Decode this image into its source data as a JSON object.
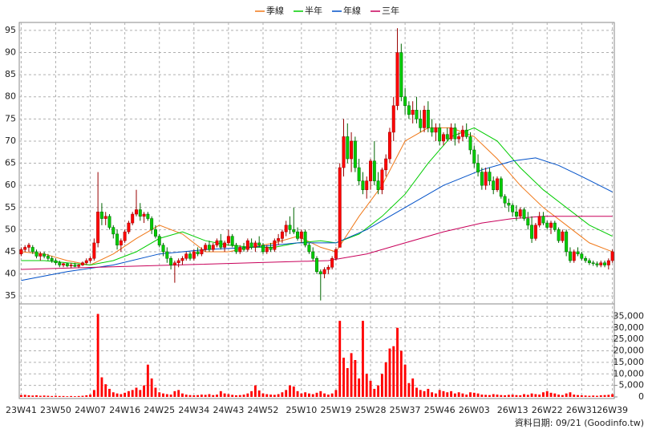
{
  "chart_data": {
    "type": "candlestick",
    "categories": [
      "23W41",
      null,
      null,
      null,
      null,
      null,
      null,
      null,
      null,
      "23W50",
      null,
      null,
      null,
      null,
      null,
      null,
      null,
      null,
      "24W07",
      null,
      null,
      null,
      null,
      null,
      null,
      null,
      null,
      "24W16",
      null,
      null,
      null,
      null,
      null,
      null,
      null,
      null,
      "24W25",
      null,
      null,
      null,
      null,
      null,
      null,
      null,
      null,
      "24W34",
      null,
      null,
      null,
      null,
      null,
      null,
      null,
      null,
      "24W43",
      null,
      null,
      null,
      null,
      null,
      null,
      null,
      null,
      "24W52",
      null,
      null,
      null,
      null,
      null,
      null,
      null,
      null,
      null,
      "25W10",
      null,
      null,
      null,
      null,
      null,
      null,
      null,
      null,
      "25W19",
      null,
      null,
      null,
      null,
      null,
      null,
      null,
      null,
      "25W28",
      null,
      null,
      null,
      null,
      null,
      null,
      null,
      null,
      "25W37",
      null,
      null,
      null,
      null,
      null,
      null,
      null,
      null,
      "25W46",
      null,
      null,
      null,
      null,
      null,
      null,
      null,
      null,
      "26W03",
      null,
      null,
      null,
      null,
      null,
      null,
      null,
      null,
      null,
      "26W13",
      null,
      null,
      null,
      null,
      null,
      null,
      null,
      null,
      "26W22",
      null,
      null,
      null,
      null,
      null,
      null,
      null,
      null,
      "26W31",
      null,
      null,
      null,
      null,
      null,
      null,
      null,
      "26W39"
    ],
    "candles": [
      [
        44.5,
        46,
        44,
        45.5
      ],
      [
        45.5,
        46.5,
        45,
        46
      ],
      [
        46,
        47,
        45,
        46.5
      ],
      [
        46,
        46.5,
        44.5,
        45
      ],
      [
        45,
        45.5,
        43.5,
        44
      ],
      [
        44,
        45,
        43,
        44.5
      ],
      [
        44.5,
        45,
        43.5,
        44
      ],
      [
        44,
        44.5,
        43,
        43.5
      ],
      [
        43.5,
        44,
        42.5,
        43
      ],
      [
        43,
        43.5,
        42,
        42.5
      ],
      [
        42.5,
        43,
        41.5,
        42
      ],
      [
        42,
        42.5,
        41.5,
        42.3
      ],
      [
        42.3,
        42.5,
        41.5,
        41.8
      ],
      [
        41.8,
        42.5,
        41.3,
        42
      ],
      [
        42,
        42.5,
        41.5,
        41.7
      ],
      [
        41.7,
        42.2,
        41.3,
        42
      ],
      [
        42,
        42.8,
        41.8,
        42.5
      ],
      [
        42.5,
        43.5,
        42,
        43
      ],
      [
        43,
        44,
        42.5,
        43.5
      ],
      [
        43.5,
        48,
        43,
        47
      ],
      [
        47,
        63,
        46,
        54
      ],
      [
        54,
        56,
        51,
        52.5
      ],
      [
        52.5,
        54,
        51,
        53
      ],
      [
        53,
        53.5,
        50,
        50.5
      ],
      [
        50.5,
        51,
        48,
        49
      ],
      [
        49,
        50,
        45.5,
        46.5
      ],
      [
        46.5,
        48,
        45,
        47.5
      ],
      [
        47.5,
        50,
        47,
        49.5
      ],
      [
        49.5,
        52,
        49,
        51.5
      ],
      [
        51.5,
        54,
        51,
        53.5
      ],
      [
        53.5,
        59,
        53,
        54.5
      ],
      [
        54.5,
        56,
        52,
        53
      ],
      [
        53,
        54,
        51.5,
        53.5
      ],
      [
        53.5,
        54,
        52,
        52.5
      ],
      [
        52.5,
        53,
        49,
        50
      ],
      [
        50,
        51,
        48,
        48.5
      ],
      [
        48.5,
        49,
        46,
        46.5
      ],
      [
        46.5,
        47,
        44,
        45
      ],
      [
        45,
        46,
        42.5,
        43.5
      ],
      [
        43.5,
        44,
        41,
        42
      ],
      [
        42,
        43,
        38,
        42.5
      ],
      [
        42.5,
        43.5,
        41.5,
        43
      ],
      [
        43,
        44,
        42,
        43.5
      ],
      [
        43.5,
        45,
        43,
        44.5
      ],
      [
        44.5,
        45,
        43,
        43.5
      ],
      [
        43.5,
        45.5,
        43,
        45
      ],
      [
        45,
        46,
        44,
        44.5
      ],
      [
        44.5,
        46,
        44,
        45.5
      ],
      [
        45.5,
        47,
        45,
        46.5
      ],
      [
        46.5,
        47.5,
        45,
        45.5
      ],
      [
        45.5,
        47,
        45,
        46.5
      ],
      [
        46.5,
        48,
        46,
        47.5
      ],
      [
        47.5,
        49,
        45.5,
        46
      ],
      [
        46,
        47.5,
        45,
        47
      ],
      [
        47,
        50,
        46.5,
        48.5
      ],
      [
        48.5,
        49,
        46,
        46.5
      ],
      [
        46.5,
        47,
        44.5,
        45
      ],
      [
        45,
        46.5,
        44.5,
        46
      ],
      [
        46,
        47,
        45,
        45.5
      ],
      [
        45.5,
        48,
        45,
        47.5
      ],
      [
        47,
        48,
        45.5,
        46
      ],
      [
        46,
        47.5,
        45,
        47
      ],
      [
        47,
        48.5,
        46,
        46.5
      ],
      [
        46.5,
        47,
        44.5,
        45
      ],
      [
        45,
        46.5,
        44.5,
        46
      ],
      [
        46,
        47,
        45,
        45.5
      ],
      [
        45.5,
        48,
        45,
        47.5
      ],
      [
        47.5,
        49,
        46.5,
        48
      ],
      [
        48,
        50,
        47,
        49.5
      ],
      [
        49.5,
        52,
        48.5,
        51
      ],
      [
        51,
        53,
        49,
        50
      ],
      [
        50,
        55,
        49,
        49.5
      ],
      [
        49.5,
        50.5,
        47.5,
        48
      ],
      [
        48,
        50,
        47,
        49.5
      ],
      [
        49.5,
        50,
        46,
        46.5
      ],
      [
        46.5,
        47,
        44.5,
        45
      ],
      [
        45,
        46,
        43,
        43.5
      ],
      [
        43.5,
        44,
        40,
        40.5
      ],
      [
        40.5,
        41,
        34,
        40
      ],
      [
        40,
        41.5,
        39,
        41
      ],
      [
        41,
        42,
        40,
        41.5
      ],
      [
        41.5,
        44,
        41,
        43.5
      ],
      [
        43.5,
        46,
        43,
        45.5
      ],
      [
        46,
        65,
        46,
        64
      ],
      [
        64,
        75,
        62,
        71
      ],
      [
        71,
        74,
        65,
        66
      ],
      [
        66,
        72,
        63,
        70
      ],
      [
        70,
        71,
        63,
        64
      ],
      [
        64,
        66,
        60,
        61
      ],
      [
        61,
        63,
        58,
        59
      ],
      [
        59,
        62,
        57,
        61
      ],
      [
        61,
        66,
        59,
        65.5
      ],
      [
        65.5,
        70,
        60,
        61
      ],
      [
        61,
        63,
        58,
        59
      ],
      [
        59,
        64,
        58,
        63.5
      ],
      [
        63.5,
        67,
        62,
        66
      ],
      [
        66,
        73,
        65,
        72
      ],
      [
        72,
        80,
        70,
        78
      ],
      [
        78,
        95.5,
        77,
        90
      ],
      [
        90,
        92,
        79,
        80
      ],
      [
        80,
        82,
        76,
        78
      ],
      [
        78,
        79,
        75,
        76
      ],
      [
        76,
        79,
        74,
        77
      ],
      [
        77,
        80,
        74,
        75
      ],
      [
        75,
        77,
        72,
        73
      ],
      [
        73,
        78,
        72,
        77
      ],
      [
        77,
        79,
        72,
        73
      ],
      [
        73,
        75,
        71,
        72
      ],
      [
        72,
        74,
        70,
        73
      ],
      [
        73,
        74,
        69,
        70
      ],
      [
        70,
        72,
        69,
        71.5
      ],
      [
        71.5,
        73,
        70,
        70.5
      ],
      [
        70.5,
        74,
        70,
        73
      ],
      [
        73,
        74,
        69,
        70.5
      ],
      [
        70.5,
        72,
        69.5,
        71
      ],
      [
        71,
        73.5,
        70,
        72.5
      ],
      [
        72.5,
        74,
        70.5,
        71
      ],
      [
        71,
        72,
        67,
        68
      ],
      [
        68,
        69,
        64,
        65
      ],
      [
        65,
        67,
        62,
        63
      ],
      [
        63,
        64,
        59,
        60
      ],
      [
        60,
        64,
        59,
        63
      ],
      [
        63,
        64,
        60,
        61
      ],
      [
        61,
        62,
        58,
        59
      ],
      [
        59,
        62,
        58.5,
        61.5
      ],
      [
        61.5,
        62,
        57,
        57.5
      ],
      [
        57.5,
        58,
        55,
        56
      ],
      [
        56,
        57,
        54,
        55.5
      ],
      [
        55.5,
        56,
        53,
        54
      ],
      [
        54,
        55.5,
        52,
        53
      ],
      [
        53,
        55,
        52.5,
        54.5
      ],
      [
        54.5,
        55,
        52,
        52.5
      ],
      [
        52.5,
        54,
        50,
        51
      ],
      [
        51,
        53,
        47,
        48
      ],
      [
        48,
        51.5,
        47.5,
        51
      ],
      [
        51,
        54,
        50.5,
        53
      ],
      [
        53,
        54,
        51,
        51.5
      ],
      [
        51.5,
        52,
        50,
        50.5
      ],
      [
        50.5,
        52,
        49,
        51.5
      ],
      [
        51.5,
        52,
        49.5,
        50
      ],
      [
        50,
        50.5,
        47,
        47.5
      ],
      [
        47.5,
        50,
        47,
        49.5
      ],
      [
        49.5,
        50,
        44,
        45
      ],
      [
        45,
        46,
        42.5,
        43
      ],
      [
        43,
        45.5,
        42.5,
        45
      ],
      [
        45,
        46,
        44,
        44.5
      ],
      [
        44.5,
        45,
        43,
        43.5
      ],
      [
        43.5,
        44,
        42.5,
        43
      ],
      [
        43,
        43.5,
        42,
        42.5
      ],
      [
        42.5,
        43,
        41.8,
        42.3
      ],
      [
        42.3,
        42.8,
        41.5,
        42
      ],
      [
        42,
        43,
        41.5,
        42.5
      ],
      [
        42.5,
        43,
        41.5,
        42
      ],
      [
        42,
        43.5,
        41,
        43
      ],
      [
        43,
        45.5,
        42.5,
        45
      ]
    ],
    "up_color": "#ff0000",
    "down_color": "#00cc00",
    "ylim": [
      33.4,
      96.8
    ],
    "yticks": [
      35,
      40,
      45,
      50,
      55,
      60,
      65,
      70,
      75,
      80,
      85,
      90,
      95
    ],
    "grid": true,
    "legend": "top",
    "series": [
      {
        "name": "季線",
        "color": "#f07818",
        "x": [
          0,
          6,
          12,
          18,
          24,
          30,
          36,
          42,
          48,
          54,
          60,
          66,
          72,
          78,
          82,
          88,
          94,
          100,
          106,
          112,
          118,
          124,
          130,
          136,
          142,
          148,
          154
        ],
        "values": [
          45,
          44.5,
          43,
          42,
          44.5,
          48,
          51,
          49,
          45,
          45,
          46,
          47,
          48.5,
          46,
          45,
          53,
          60,
          70,
          73,
          73,
          71,
          66,
          60,
          55,
          51,
          47,
          45
        ]
      },
      {
        "name": "半年",
        "color": "#00cc00",
        "x": [
          0,
          6,
          12,
          18,
          24,
          30,
          36,
          42,
          48,
          54,
          60,
          66,
          72,
          78,
          82,
          88,
          94,
          100,
          106,
          112,
          118,
          124,
          130,
          136,
          142,
          148,
          154
        ],
        "values": [
          43,
          43,
          42.5,
          42,
          43,
          45,
          48,
          49.5,
          47.5,
          46.5,
          46,
          46,
          47,
          47.5,
          47,
          49,
          53,
          58,
          65,
          71,
          73,
          70,
          64,
          59,
          55,
          51,
          48.5
        ]
      },
      {
        "name": "年線",
        "color": "#0050c8",
        "x": [
          0,
          12,
          24,
          36,
          48,
          60,
          72,
          82,
          90,
          100,
          110,
          120,
          128,
          134,
          140,
          146,
          154
        ],
        "values": [
          38.5,
          40.5,
          42,
          44.5,
          45.5,
          46,
          47,
          47,
          50,
          55,
          60,
          63.5,
          65.5,
          66.2,
          64.5,
          62,
          58.5
        ]
      },
      {
        "name": "三年",
        "color": "#c8005a",
        "x": [
          0,
          20,
          40,
          60,
          80,
          90,
          100,
          110,
          120,
          128,
          136,
          154
        ],
        "values": [
          41,
          41.5,
          42,
          42.5,
          43,
          44.5,
          47,
          49.5,
          51.5,
          52.5,
          53,
          53
        ]
      }
    ],
    "volume": {
      "color": "#ff0000",
      "ylim": [
        0,
        40000
      ],
      "yticks": [
        0,
        {
          "value": 5000,
          "label": "5,000"
        },
        {
          "value": 10000,
          "label": "10,000"
        },
        {
          "value": 15000,
          "label": "15,000"
        },
        {
          "value": 20000,
          "label": "20,000"
        },
        {
          "value": 25000,
          "label": "25,000"
        },
        {
          "value": 30000,
          "label": "30,000"
        },
        {
          "value": 35000,
          "label": "35,000"
        }
      ],
      "values": [
        800,
        900,
        700,
        600,
        700,
        500,
        600,
        500,
        400,
        500,
        400,
        400,
        300,
        400,
        300,
        400,
        500,
        700,
        1000,
        3000,
        36000,
        8500,
        5500,
        3500,
        2000,
        1500,
        1200,
        1800,
        2500,
        3000,
        4000,
        3000,
        5000,
        14000,
        8000,
        4000,
        2000,
        1500,
        1200,
        1000,
        2500,
        3000,
        1500,
        1000,
        800,
        700,
        800,
        1000,
        900,
        1200,
        800,
        1000,
        2500,
        1500,
        1200,
        900,
        700,
        800,
        1000,
        1500,
        2500,
        5000,
        2800,
        1500,
        1200,
        1000,
        900,
        1200,
        2000,
        3000,
        5000,
        4500,
        2500,
        1500,
        2000,
        1500,
        1200,
        1800,
        2500,
        1500,
        1000,
        1500,
        3000,
        33000,
        17000,
        12500,
        19000,
        16000,
        8000,
        33000,
        10000,
        7000,
        3500,
        5000,
        10000,
        15000,
        21000,
        22000,
        30000,
        20000,
        14000,
        6000,
        8000,
        4000,
        3000,
        2500,
        3500,
        2000,
        1500,
        3000,
        2500,
        2000,
        2500,
        1500,
        2000,
        1500,
        1000,
        2000,
        1800,
        1500,
        1000,
        900,
        800,
        1200,
        1000,
        800,
        700,
        900,
        1000,
        800,
        700,
        1200,
        900,
        1500,
        1200,
        1000,
        2000,
        2500,
        1800,
        1500,
        1000,
        800,
        1500,
        2000,
        1000,
        800,
        700,
        600,
        500,
        600,
        500,
        700,
        800,
        900,
        1200
      ]
    },
    "footnote": "資料日期: 09/21 (Goodinfo.tw)"
  }
}
